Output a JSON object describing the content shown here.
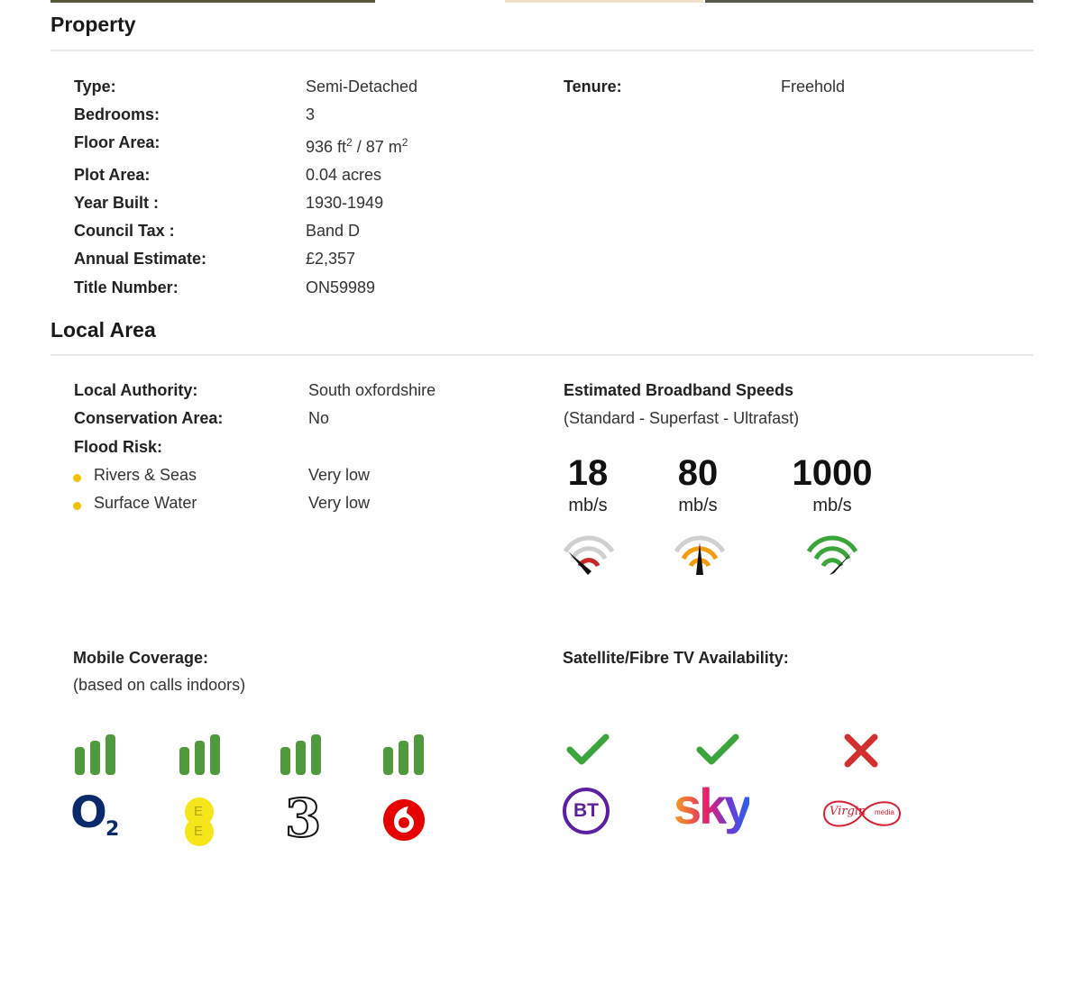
{
  "property": {
    "heading": "Property",
    "rows": [
      {
        "label": "Type:",
        "value": "Semi-Detached"
      },
      {
        "label": "Bedrooms:",
        "value": "3"
      },
      {
        "label": "Floor Area:",
        "value_ft": "936 ft",
        "value_sep": " / 87 m",
        "sup": "2"
      },
      {
        "label": "Plot Area:",
        "value": "0.04 acres"
      },
      {
        "label": "Year Built :",
        "value": "1930-1949"
      },
      {
        "label": "Council Tax :",
        "value": "Band D"
      },
      {
        "label": "Annual Estimate:",
        "value": "£2,357"
      },
      {
        "label": "Title Number:",
        "value": "ON59989"
      }
    ],
    "tenure_label": "Tenure:",
    "tenure_value": "Freehold"
  },
  "local_area": {
    "heading": "Local Area",
    "authority_label": "Local Authority:",
    "authority_value": "South oxfordshire",
    "conservation_label": "Conservation Area:",
    "conservation_value": "No",
    "flood_label": "Flood Risk:",
    "flood_items": [
      {
        "label": "Rivers & Seas",
        "value": "Very low"
      },
      {
        "label": "Surface Water",
        "value": "Very low"
      }
    ]
  },
  "broadband": {
    "title": "Estimated Broadband Speeds",
    "subtitle": "(Standard - Superfast - Ultrafast)",
    "speeds": [
      {
        "value": "18",
        "unit": "mb/s",
        "icon": "speedometer-low-icon",
        "color": "#c62828"
      },
      {
        "value": "80",
        "unit": "mb/s",
        "icon": "speedometer-medium-icon",
        "color": "#f39c12"
      },
      {
        "value": "1000",
        "unit": "mb/s",
        "icon": "wifi-high-icon",
        "color": "#3aa53a"
      }
    ]
  },
  "mobile": {
    "title": "Mobile Coverage:",
    "subtitle": "(based on calls indoors)",
    "networks": [
      {
        "name": "O2",
        "logo_text": "O",
        "logo_sub": "2",
        "icon": "signal-bars-icon"
      },
      {
        "name": "EE",
        "logo_text": "E",
        "logo_text2": "E",
        "icon": "signal-bars-icon"
      },
      {
        "name": "Three",
        "logo_text": "3",
        "icon": "signal-bars-icon"
      },
      {
        "name": "Vodafone",
        "icon": "signal-bars-icon"
      }
    ],
    "signal_color": "#4f9a3c"
  },
  "tv": {
    "title": "Satellite/Fibre TV Availability:",
    "providers": [
      {
        "name": "BT",
        "logo_text": "BT",
        "available": true
      },
      {
        "name": "Sky",
        "logo_text": "sky",
        "available": true
      },
      {
        "name": "Virgin Media",
        "logo_text": "Virgin",
        "logo_sub": "media",
        "available": false
      }
    ]
  },
  "colors": {
    "check": "#3aa53a",
    "cross": "#d32f2f",
    "bullet": "#f2c200",
    "bt_purple": "#5b1fa3",
    "virgin_red": "#d62031",
    "vodafone_red": "#e60000",
    "o2_blue": "#0a2a6b"
  }
}
